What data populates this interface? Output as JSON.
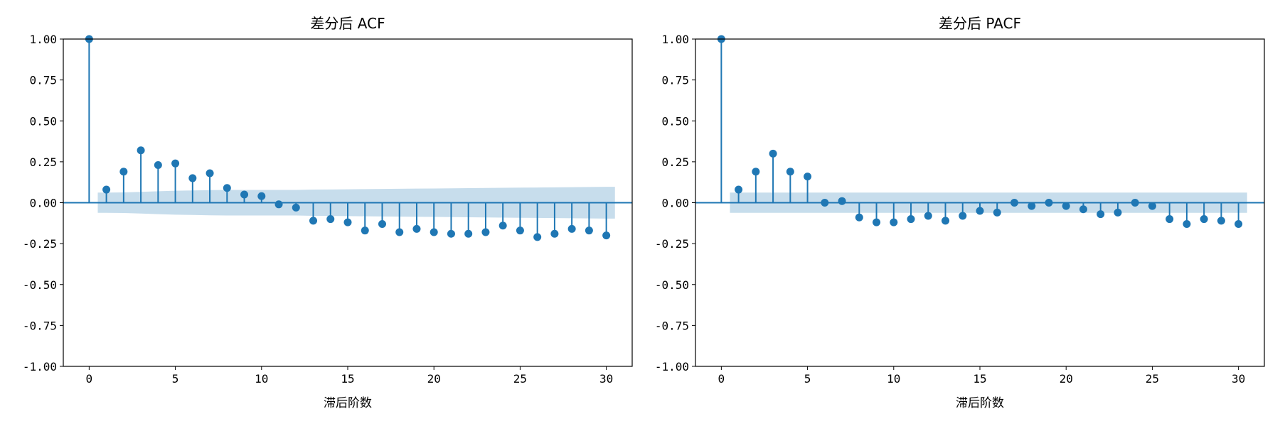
{
  "chart_data": [
    {
      "type": "stem",
      "title": "差分后 ACF",
      "xlabel": "滞后阶数",
      "ylabel": "",
      "xlim": [
        -1.5,
        31.5
      ],
      "ylim": [
        -1.0,
        1.0
      ],
      "xticks": [
        "0",
        "5",
        "10",
        "15",
        "20",
        "25",
        "30"
      ],
      "yticks": [
        "1.00",
        "0.75",
        "0.50",
        "0.25",
        "0.00",
        "-0.25",
        "-0.50",
        "-0.75",
        "-1.00"
      ],
      "lags": [
        0,
        1,
        2,
        3,
        4,
        5,
        6,
        7,
        8,
        9,
        10,
        11,
        12,
        13,
        14,
        15,
        16,
        17,
        18,
        19,
        20,
        21,
        22,
        23,
        24,
        25,
        26,
        27,
        28,
        29,
        30
      ],
      "values": [
        1.0,
        0.08,
        0.19,
        0.32,
        0.23,
        0.24,
        0.15,
        0.18,
        0.09,
        0.05,
        0.04,
        -0.01,
        -0.03,
        -0.11,
        -0.1,
        -0.12,
        -0.17,
        -0.13,
        -0.18,
        -0.16,
        -0.18,
        -0.19,
        -0.19,
        -0.18,
        -0.14,
        -0.17,
        -0.21,
        -0.19,
        -0.16,
        -0.17,
        -0.2
      ],
      "confidence_band": {
        "lags": [
          0.5,
          1,
          2,
          3,
          4,
          5,
          6,
          7,
          8,
          9,
          10,
          11,
          12,
          13,
          14,
          15,
          16,
          17,
          18,
          19,
          20,
          21,
          22,
          23,
          24,
          25,
          26,
          27,
          28,
          29,
          30,
          30.5
        ],
        "half_width": [
          0.062,
          0.062,
          0.063,
          0.066,
          0.07,
          0.073,
          0.075,
          0.077,
          0.078,
          0.078,
          0.078,
          0.078,
          0.078,
          0.08,
          0.081,
          0.082,
          0.083,
          0.084,
          0.085,
          0.086,
          0.087,
          0.088,
          0.089,
          0.09,
          0.091,
          0.092,
          0.093,
          0.094,
          0.095,
          0.096,
          0.097,
          0.097
        ]
      },
      "colors": {
        "stem": "#1f77b4",
        "band": "#1f77b4"
      }
    },
    {
      "type": "stem",
      "title": "差分后 PACF",
      "xlabel": "滞后阶数",
      "ylabel": "",
      "xlim": [
        -1.5,
        31.5
      ],
      "ylim": [
        -1.0,
        1.0
      ],
      "xticks": [
        "0",
        "5",
        "10",
        "15",
        "20",
        "25",
        "30"
      ],
      "yticks": [
        "1.00",
        "0.75",
        "0.50",
        "0.25",
        "0.00",
        "-0.25",
        "-0.50",
        "-0.75",
        "-1.00"
      ],
      "lags": [
        0,
        1,
        2,
        3,
        4,
        5,
        6,
        7,
        8,
        9,
        10,
        11,
        12,
        13,
        14,
        15,
        16,
        17,
        18,
        19,
        20,
        21,
        22,
        23,
        24,
        25,
        26,
        27,
        28,
        29,
        30
      ],
      "values": [
        1.0,
        0.08,
        0.19,
        0.3,
        0.19,
        0.16,
        0.0,
        0.01,
        -0.09,
        -0.12,
        -0.12,
        -0.1,
        -0.08,
        -0.11,
        -0.08,
        -0.05,
        -0.06,
        0.0,
        -0.02,
        0.0,
        -0.02,
        -0.04,
        -0.07,
        -0.06,
        0.0,
        -0.02,
        -0.1,
        -0.13,
        -0.1,
        -0.11,
        -0.13
      ],
      "confidence_band": {
        "lags": [
          0.5,
          30.5
        ],
        "half_width": [
          0.062,
          0.062
        ]
      },
      "colors": {
        "stem": "#1f77b4",
        "band": "#1f77b4"
      }
    }
  ]
}
